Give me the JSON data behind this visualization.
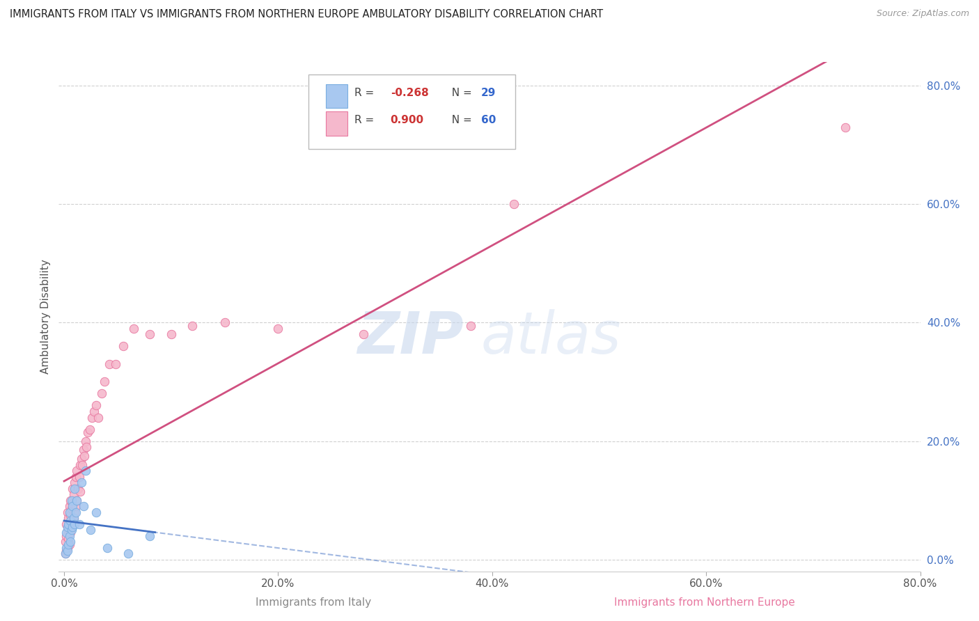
{
  "title": "IMMIGRANTS FROM ITALY VS IMMIGRANTS FROM NORTHERN EUROPE AMBULATORY DISABILITY CORRELATION CHART",
  "source": "Source: ZipAtlas.com",
  "ylabel": "Ambulatory Disability",
  "xlabel_italy": "Immigrants from Italy",
  "xlabel_ne": "Immigrants from Northern Europe",
  "xlim": [
    -0.005,
    0.8
  ],
  "ylim": [
    -0.02,
    0.84
  ],
  "yticks": [
    0.0,
    0.2,
    0.4,
    0.6,
    0.8
  ],
  "xticks": [
    0.0,
    0.2,
    0.4,
    0.6,
    0.8
  ],
  "italy_color": "#a8c8f0",
  "italy_edge": "#7aaee0",
  "ne_color": "#f5b8cc",
  "ne_edge": "#e878a0",
  "italy_R": -0.268,
  "italy_N": 29,
  "ne_R": 0.9,
  "ne_N": 60,
  "italy_line_color": "#4472c4",
  "ne_line_color": "#d05080",
  "watermark_zip": "ZIP",
  "watermark_atlas": "atlas",
  "italy_scatter_x": [
    0.001,
    0.002,
    0.002,
    0.003,
    0.003,
    0.004,
    0.004,
    0.005,
    0.005,
    0.006,
    0.006,
    0.007,
    0.007,
    0.008,
    0.008,
    0.009,
    0.01,
    0.01,
    0.011,
    0.012,
    0.014,
    0.016,
    0.018,
    0.02,
    0.025,
    0.03,
    0.04,
    0.06,
    0.08
  ],
  "italy_scatter_y": [
    0.01,
    0.02,
    0.045,
    0.015,
    0.055,
    0.025,
    0.06,
    0.04,
    0.08,
    0.03,
    0.065,
    0.05,
    0.1,
    0.055,
    0.09,
    0.07,
    0.06,
    0.12,
    0.08,
    0.1,
    0.06,
    0.13,
    0.09,
    0.15,
    0.05,
    0.08,
    0.02,
    0.01,
    0.04
  ],
  "ne_scatter_x": [
    0.001,
    0.001,
    0.002,
    0.002,
    0.002,
    0.003,
    0.003,
    0.003,
    0.004,
    0.004,
    0.005,
    0.005,
    0.005,
    0.006,
    0.006,
    0.006,
    0.007,
    0.007,
    0.008,
    0.008,
    0.008,
    0.009,
    0.009,
    0.01,
    0.01,
    0.011,
    0.011,
    0.012,
    0.012,
    0.013,
    0.014,
    0.015,
    0.015,
    0.016,
    0.017,
    0.018,
    0.019,
    0.02,
    0.021,
    0.022,
    0.024,
    0.026,
    0.028,
    0.03,
    0.032,
    0.035,
    0.038,
    0.042,
    0.048,
    0.055,
    0.065,
    0.08,
    0.1,
    0.12,
    0.15,
    0.2,
    0.28,
    0.38,
    0.42,
    0.73
  ],
  "ne_scatter_y": [
    0.01,
    0.03,
    0.015,
    0.04,
    0.06,
    0.02,
    0.05,
    0.08,
    0.035,
    0.07,
    0.025,
    0.06,
    0.09,
    0.045,
    0.075,
    0.1,
    0.055,
    0.085,
    0.065,
    0.095,
    0.12,
    0.07,
    0.11,
    0.08,
    0.13,
    0.09,
    0.14,
    0.1,
    0.15,
    0.12,
    0.14,
    0.16,
    0.115,
    0.17,
    0.16,
    0.185,
    0.175,
    0.2,
    0.19,
    0.215,
    0.22,
    0.24,
    0.25,
    0.26,
    0.24,
    0.28,
    0.3,
    0.33,
    0.33,
    0.36,
    0.39,
    0.38,
    0.38,
    0.395,
    0.4,
    0.39,
    0.38,
    0.395,
    0.6,
    0.73
  ]
}
